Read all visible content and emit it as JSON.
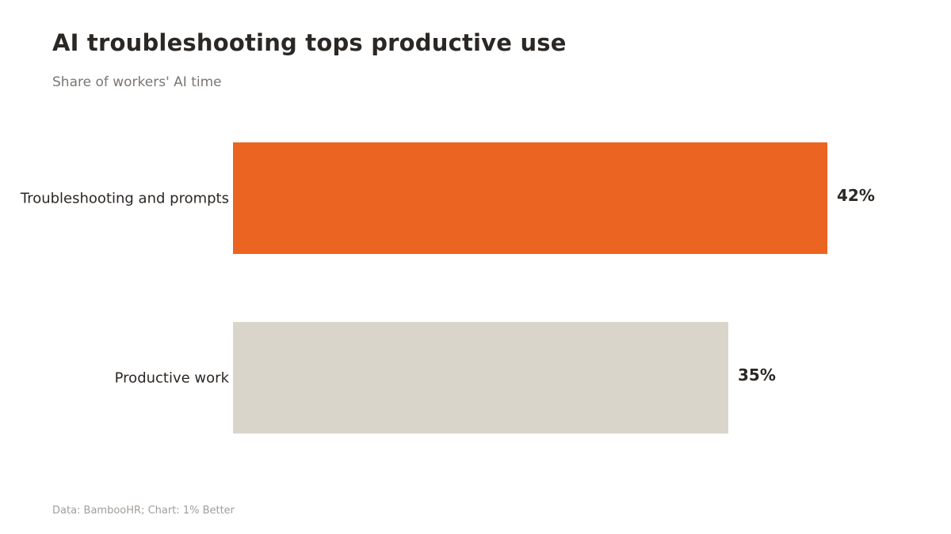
{
  "header": {
    "title": "AI troubleshooting tops productive use",
    "subtitle": "Share of workers' AI time"
  },
  "footer": {
    "source": "Data: BambooHR; Chart: 1% Better"
  },
  "colors": {
    "highlight": "#ec6421",
    "muted": "#dad5cb",
    "text": "#2b2724"
  },
  "chart_data": {
    "type": "bar",
    "orientation": "horizontal",
    "categories": [
      "Troubleshooting and prompts",
      "Productive work"
    ],
    "values": [
      42,
      35
    ],
    "value_labels": [
      "42%",
      "35%"
    ],
    "unit": "%",
    "xlim": [
      0,
      42
    ],
    "grid": false,
    "legend": "none",
    "bar_colors": [
      "#ec6421",
      "#dad5cb"
    ]
  }
}
